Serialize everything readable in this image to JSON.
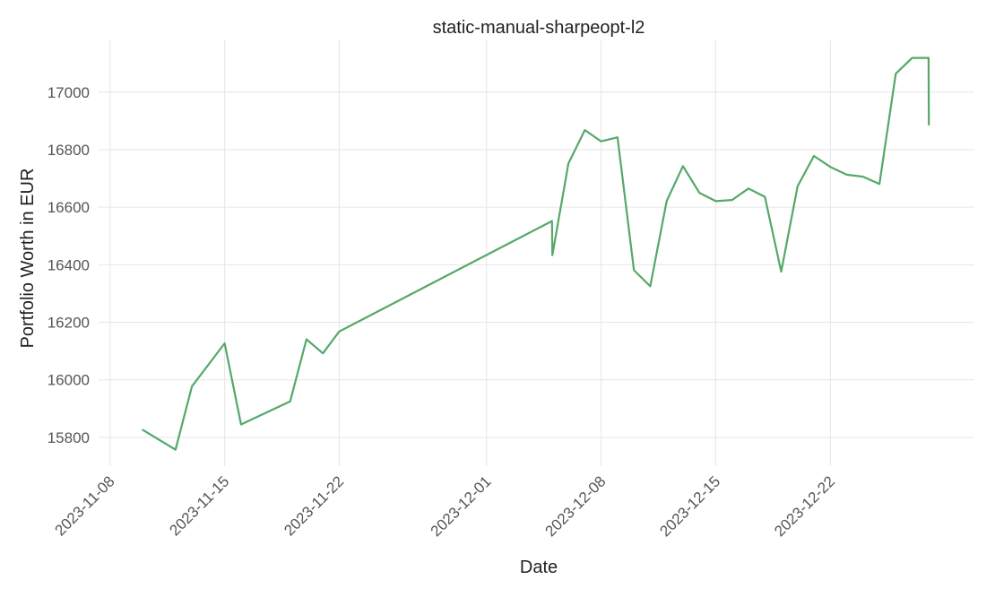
{
  "chart_data": {
    "type": "line",
    "title": "static-manual-sharpeopt-l2",
    "xlabel": "Date",
    "ylabel": "Portfolio Worth in EUR",
    "x_ticks": [
      "2023-11-08",
      "2023-11-15",
      "2023-11-22",
      "2023-12-01",
      "2023-12-08",
      "2023-12-15",
      "2023-12-22"
    ],
    "y_ticks": [
      15800,
      16000,
      16200,
      16400,
      16600,
      16800,
      17000
    ],
    "xlim": [
      "2023-11-08",
      "2023-12-30"
    ],
    "ylim": [
      15700,
      17180
    ],
    "grid": true,
    "series": [
      {
        "name": "Portfolio Worth",
        "color": "#55a868",
        "x": [
          "2023-11-10",
          "2023-11-12",
          "2023-11-13",
          "2023-11-15",
          "2023-11-16",
          "2023-11-19",
          "2023-11-20",
          "2023-11-21",
          "2023-11-22",
          "2023-12-05",
          "2023-12-05",
          "2023-12-06",
          "2023-12-07",
          "2023-12-08",
          "2023-12-09",
          "2023-12-10",
          "2023-12-11",
          "2023-12-12",
          "2023-12-13",
          "2023-12-14",
          "2023-12-15",
          "2023-12-16",
          "2023-12-17",
          "2023-12-18",
          "2023-12-19",
          "2023-12-20",
          "2023-12-21",
          "2023-12-22",
          "2023-12-23",
          "2023-12-24",
          "2023-12-25",
          "2023-12-26",
          "2023-12-27",
          "2023-12-28",
          "2023-12-28"
        ],
        "values": [
          15826,
          15757,
          15977,
          16127,
          15845,
          15925,
          16141,
          16092,
          16168,
          16552,
          16433,
          16752,
          16868,
          16829,
          16843,
          16381,
          16325,
          16621,
          16743,
          16650,
          16621,
          16625,
          16665,
          16636,
          16376,
          16673,
          16778,
          16740,
          16713,
          16706,
          16681,
          17064,
          17119,
          17119,
          16887
        ]
      }
    ]
  }
}
